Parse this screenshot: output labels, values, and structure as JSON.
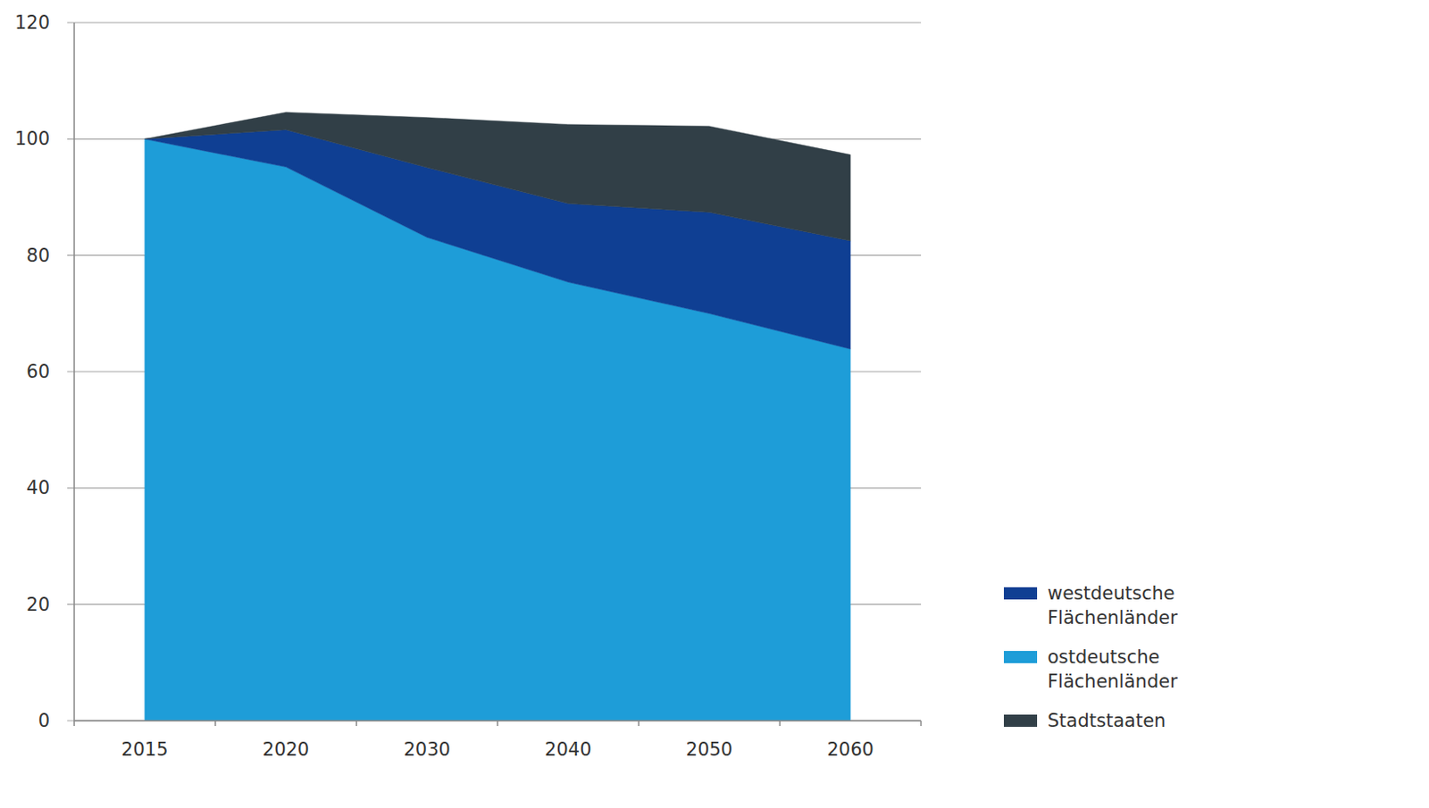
{
  "chart_data": {
    "type": "area",
    "stacked": true,
    "grid": true,
    "legend": "lower right",
    "categories": [
      "2015",
      "2020",
      "2030",
      "2040",
      "2050",
      "2060"
    ],
    "ylim": [
      0,
      120
    ],
    "yticks": [
      0,
      20,
      40,
      60,
      80,
      100,
      120
    ],
    "series": [
      {
        "name": "ostdeutsche Flächenländer",
        "color": "#1e9dd8",
        "values": [
          100,
          95.2,
          83.1,
          75.4,
          70.0,
          63.9
        ]
      },
      {
        "name": "westdeutsche Flächenländer",
        "color": "#0f3f93",
        "values": [
          0,
          6.4,
          12.0,
          13.5,
          17.4,
          18.6
        ]
      },
      {
        "name": "Stadtstaaten",
        "color": "#313f47",
        "values": [
          0,
          3.0,
          8.6,
          13.6,
          14.8,
          14.8
        ]
      }
    ]
  }
}
